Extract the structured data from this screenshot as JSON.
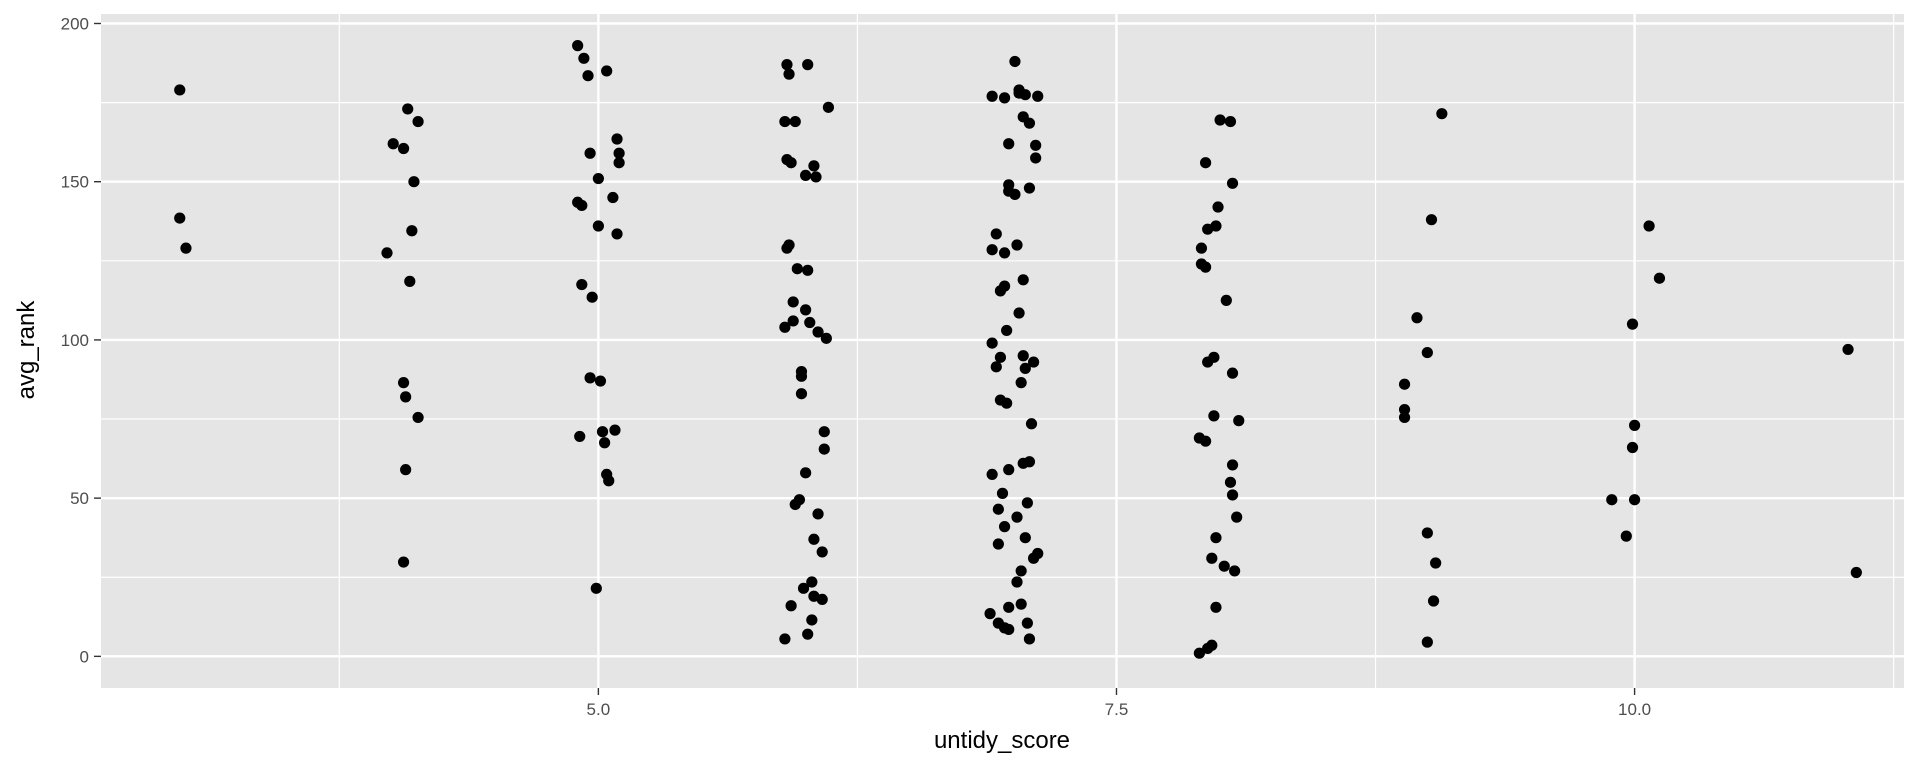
{
  "chart_data": {
    "type": "scatter",
    "xlabel": "untidy_score",
    "ylabel": "avg_rank",
    "xlim": [
      2.6,
      11.3
    ],
    "ylim": [
      -10,
      203
    ],
    "x_ticks": [
      5.0,
      7.5,
      10.0
    ],
    "x_tick_labels": [
      "5.0",
      "7.5",
      "10.0"
    ],
    "y_ticks": [
      0,
      50,
      100,
      150,
      200
    ],
    "y_tick_labels": [
      "0",
      "50",
      "100",
      "150",
      "200"
    ],
    "grid": true,
    "legend": "none",
    "colors": {
      "panel": "#e5e5e5",
      "grid": "#ffffff",
      "point": "#000000",
      "tick_text": "#4d4d4d"
    },
    "points": [
      [
        2.98,
        179
      ],
      [
        2.98,
        138.5
      ],
      [
        3.01,
        129
      ],
      [
        3.98,
        127.5
      ],
      [
        4.01,
        162
      ],
      [
        4.06,
        160.5
      ],
      [
        4.08,
        173
      ],
      [
        4.13,
        169
      ],
      [
        4.11,
        150
      ],
      [
        4.1,
        134.5
      ],
      [
        4.09,
        118.5
      ],
      [
        4.06,
        86.5
      ],
      [
        4.07,
        82
      ],
      [
        4.13,
        75.5
      ],
      [
        4.07,
        59
      ],
      [
        4.06,
        29.8
      ],
      [
        4.9,
        193
      ],
      [
        4.93,
        189
      ],
      [
        4.95,
        183.5
      ],
      [
        5.04,
        185
      ],
      [
        5.09,
        163.5
      ],
      [
        5.1,
        159
      ],
      [
        5.1,
        156
      ],
      [
        4.96,
        159
      ],
      [
        5.0,
        151
      ],
      [
        5.07,
        145
      ],
      [
        4.9,
        143.5
      ],
      [
        4.92,
        142.5
      ],
      [
        5.0,
        136
      ],
      [
        5.09,
        133.5
      ],
      [
        4.92,
        117.5
      ],
      [
        4.97,
        113.5
      ],
      [
        4.96,
        88
      ],
      [
        5.01,
        87
      ],
      [
        4.91,
        69.5
      ],
      [
        5.02,
        71
      ],
      [
        5.08,
        71.5
      ],
      [
        5.03,
        67.5
      ],
      [
        5.04,
        57.5
      ],
      [
        5.05,
        55.5
      ],
      [
        4.99,
        21.5
      ],
      [
        5.91,
        187
      ],
      [
        6.01,
        187
      ],
      [
        5.92,
        184
      ],
      [
        5.9,
        169
      ],
      [
        5.95,
        169
      ],
      [
        6.11,
        173.5
      ],
      [
        5.91,
        157
      ],
      [
        5.93,
        156
      ],
      [
        6.04,
        155
      ],
      [
        6.0,
        152
      ],
      [
        6.05,
        151.5
      ],
      [
        5.92,
        130
      ],
      [
        5.91,
        129
      ],
      [
        5.96,
        122.5
      ],
      [
        6.01,
        122
      ],
      [
        5.94,
        112
      ],
      [
        6.0,
        109.5
      ],
      [
        5.94,
        106
      ],
      [
        6.02,
        105.5
      ],
      [
        5.9,
        104
      ],
      [
        6.06,
        102.5
      ],
      [
        6.1,
        100.5
      ],
      [
        5.98,
        90
      ],
      [
        5.98,
        88.5
      ],
      [
        5.98,
        83
      ],
      [
        6.09,
        71
      ],
      [
        6.09,
        65.5
      ],
      [
        6.0,
        58
      ],
      [
        5.97,
        49.5
      ],
      [
        5.95,
        48
      ],
      [
        6.06,
        45
      ],
      [
        6.04,
        37
      ],
      [
        6.08,
        33
      ],
      [
        6.03,
        23.5
      ],
      [
        5.99,
        21.5
      ],
      [
        6.04,
        19
      ],
      [
        6.08,
        18
      ],
      [
        5.93,
        16
      ],
      [
        6.03,
        11.5
      ],
      [
        6.01,
        7
      ],
      [
        5.9,
        5.5
      ],
      [
        7.01,
        188
      ],
      [
        6.96,
        176.5
      ],
      [
        7.03,
        179
      ],
      [
        7.03,
        178
      ],
      [
        7.06,
        177.5
      ],
      [
        6.9,
        177
      ],
      [
        7.12,
        177
      ],
      [
        7.05,
        170.5
      ],
      [
        7.08,
        168.5
      ],
      [
        6.98,
        162
      ],
      [
        7.11,
        161.5
      ],
      [
        7.11,
        157.5
      ],
      [
        6.98,
        149
      ],
      [
        6.98,
        147
      ],
      [
        7.01,
        146
      ],
      [
        7.08,
        148
      ],
      [
        6.92,
        133.5
      ],
      [
        6.9,
        128.5
      ],
      [
        6.96,
        127.5
      ],
      [
        7.02,
        130
      ],
      [
        7.05,
        119
      ],
      [
        6.96,
        117
      ],
      [
        6.94,
        115.5
      ],
      [
        7.03,
        108.5
      ],
      [
        6.97,
        103
      ],
      [
        6.9,
        99
      ],
      [
        6.94,
        94.5
      ],
      [
        7.05,
        95
      ],
      [
        7.1,
        93
      ],
      [
        6.92,
        91.5
      ],
      [
        7.06,
        91
      ],
      [
        7.04,
        86.5
      ],
      [
        6.94,
        81
      ],
      [
        6.97,
        80
      ],
      [
        7.09,
        73.5
      ],
      [
        7.08,
        61.5
      ],
      [
        7.05,
        61
      ],
      [
        6.98,
        59
      ],
      [
        6.9,
        57.5
      ],
      [
        6.95,
        51.5
      ],
      [
        7.07,
        48.5
      ],
      [
        6.93,
        46.5
      ],
      [
        7.02,
        44
      ],
      [
        6.96,
        41
      ],
      [
        7.06,
        37.5
      ],
      [
        6.93,
        35.5
      ],
      [
        7.12,
        32.5
      ],
      [
        7.1,
        31
      ],
      [
        7.04,
        27
      ],
      [
        7.02,
        23.5
      ],
      [
        7.04,
        16.5
      ],
      [
        6.98,
        15.5
      ],
      [
        6.89,
        13.5
      ],
      [
        6.93,
        10.5
      ],
      [
        7.07,
        10.5
      ],
      [
        6.96,
        9
      ],
      [
        6.98,
        8.5
      ],
      [
        7.08,
        5.5
      ],
      [
        8.0,
        169.5
      ],
      [
        8.05,
        169
      ],
      [
        7.93,
        156
      ],
      [
        8.06,
        149.5
      ],
      [
        7.99,
        142
      ],
      [
        7.94,
        135
      ],
      [
        7.98,
        136
      ],
      [
        7.91,
        129
      ],
      [
        7.91,
        124
      ],
      [
        7.93,
        123
      ],
      [
        8.03,
        112.5
      ],
      [
        7.97,
        94.5
      ],
      [
        7.94,
        93
      ],
      [
        8.06,
        89.5
      ],
      [
        7.97,
        76
      ],
      [
        8.09,
        74.5
      ],
      [
        7.9,
        69
      ],
      [
        7.93,
        68
      ],
      [
        8.06,
        60.5
      ],
      [
        8.05,
        55
      ],
      [
        8.06,
        51
      ],
      [
        8.08,
        44
      ],
      [
        7.98,
        37.5
      ],
      [
        7.96,
        31
      ],
      [
        8.02,
        28.5
      ],
      [
        8.07,
        27
      ],
      [
        7.98,
        15.5
      ],
      [
        7.96,
        3.5
      ],
      [
        7.94,
        2.5
      ],
      [
        7.9,
        1
      ],
      [
        9.07,
        171.5
      ],
      [
        9.02,
        138
      ],
      [
        8.95,
        107
      ],
      [
        9.0,
        96
      ],
      [
        8.89,
        86
      ],
      [
        8.89,
        78
      ],
      [
        8.89,
        75.5
      ],
      [
        9.0,
        39
      ],
      [
        9.04,
        29.5
      ],
      [
        9.03,
        17.5
      ],
      [
        9.0,
        4.5
      ],
      [
        10.07,
        136
      ],
      [
        10.12,
        119.5
      ],
      [
        9.99,
        105
      ],
      [
        10.0,
        73
      ],
      [
        9.99,
        66
      ],
      [
        9.89,
        49.5
      ],
      [
        10.0,
        49.5
      ],
      [
        9.96,
        38
      ],
      [
        11.03,
        97
      ],
      [
        11.07,
        26.5
      ]
    ]
  }
}
